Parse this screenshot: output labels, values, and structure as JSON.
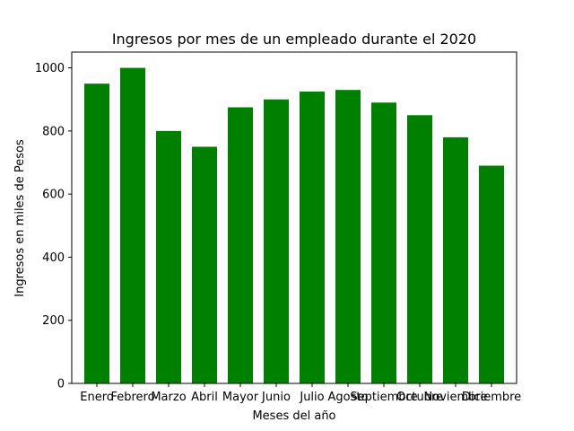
{
  "chart_data": {
    "type": "bar",
    "title": "Ingresos por mes de un empleado durante el 2020",
    "xlabel": "Meses del año",
    "ylabel": "Ingresos en miles de Pesos",
    "categories": [
      "Enero",
      "Febrero",
      "Marzo",
      "Abril",
      "Mayor",
      "Junio",
      "Julio",
      "Agosto",
      "Septiembre",
      "Octubre",
      "Noviembre",
      "Diciembre"
    ],
    "values": [
      950,
      1000,
      800,
      750,
      875,
      900,
      925,
      930,
      890,
      850,
      780,
      690
    ],
    "ylim": [
      0,
      1050
    ],
    "yticks": [
      0,
      200,
      400,
      600,
      800,
      1000
    ],
    "bar_color": "#008000",
    "grid": false,
    "legend": false
  }
}
